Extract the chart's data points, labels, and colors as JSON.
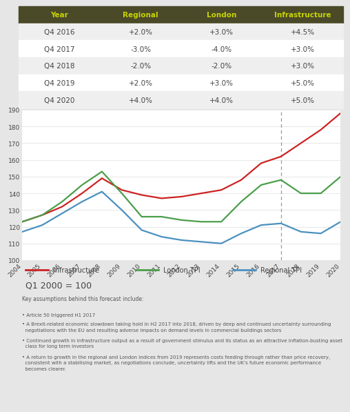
{
  "table_header": [
    "Year",
    "Regional",
    "London",
    "Infrastructure"
  ],
  "table_rows": [
    [
      "Q4 2016",
      "+2.0%",
      "+3.0%",
      "+4.5%"
    ],
    [
      "Q4 2017",
      "-3.0%",
      "-4.0%",
      "+3.0%"
    ],
    [
      "Q4 2018",
      "-2.0%",
      "-2.0%",
      "+3.0%"
    ],
    [
      "Q4 2019",
      "+2.0%",
      "+3.0%",
      "+5.0%"
    ],
    [
      "Q4 2020",
      "+4.0%",
      "+4.0%",
      "+5.0%"
    ]
  ],
  "header_bg": "#4a4a28",
  "header_text_color": "#c8d400",
  "row_bg_odd": "#efefef",
  "row_bg_even": "#ffffff",
  "table_text_color": "#444444",
  "years": [
    2004,
    2005,
    2006,
    2007,
    2008,
    2009,
    2010,
    2011,
    2012,
    2013,
    2014,
    2015,
    2016,
    2017,
    2018,
    2019,
    2020
  ],
  "infrastructure": [
    123,
    127,
    132,
    140,
    149,
    142,
    139,
    137,
    138,
    140,
    142,
    148,
    158,
    162,
    170,
    178,
    188
  ],
  "london_tpi": [
    123,
    127,
    135,
    145,
    153,
    140,
    126,
    126,
    124,
    123,
    123,
    135,
    145,
    148,
    140,
    140,
    150
  ],
  "regional_tpi": [
    117,
    121,
    128,
    135,
    141,
    130,
    118,
    114,
    112,
    111,
    110,
    116,
    121,
    122,
    117,
    116,
    123
  ],
  "infra_color": "#cc2222",
  "london_color": "#4a9e4a",
  "regional_color": "#4a90c0",
  "ylim": [
    100,
    190
  ],
  "yticks": [
    100,
    110,
    120,
    130,
    140,
    150,
    160,
    170,
    180,
    190
  ],
  "dashed_line_x": 2017,
  "chart_bg": "#ffffff",
  "outer_bg": "#e6e6e6",
  "legend_items": [
    "Infrastructure",
    "London TPI",
    "Regional TPI"
  ],
  "chart_label": "Q1 2000 = 100",
  "key_assumptions_header": "Key assumptions behind this forecast include:",
  "bullet_points": [
    "• Article 50 triggered H1 2017",
    "• A Brexit-related economic slowdown taking hold in H2 2017 into 2018, driven by deep and continued uncertainty surrounding\n  negotiations with the EU and resulting adverse impacts on demand levels in commercial buildings sectors",
    "• Continued growth in infrastructure output as a result of government stimulus and its status as an attractive inflation-busting asset\n  class for long term investors",
    "• A return to growth in the regional and London indices from 2019 represents costs feeding through rather than price recovery,\n  consistent with a stabilising market, as negotiations conclude, uncertainty lifts and the UK’s future economic performance\n  becomes clearer."
  ]
}
